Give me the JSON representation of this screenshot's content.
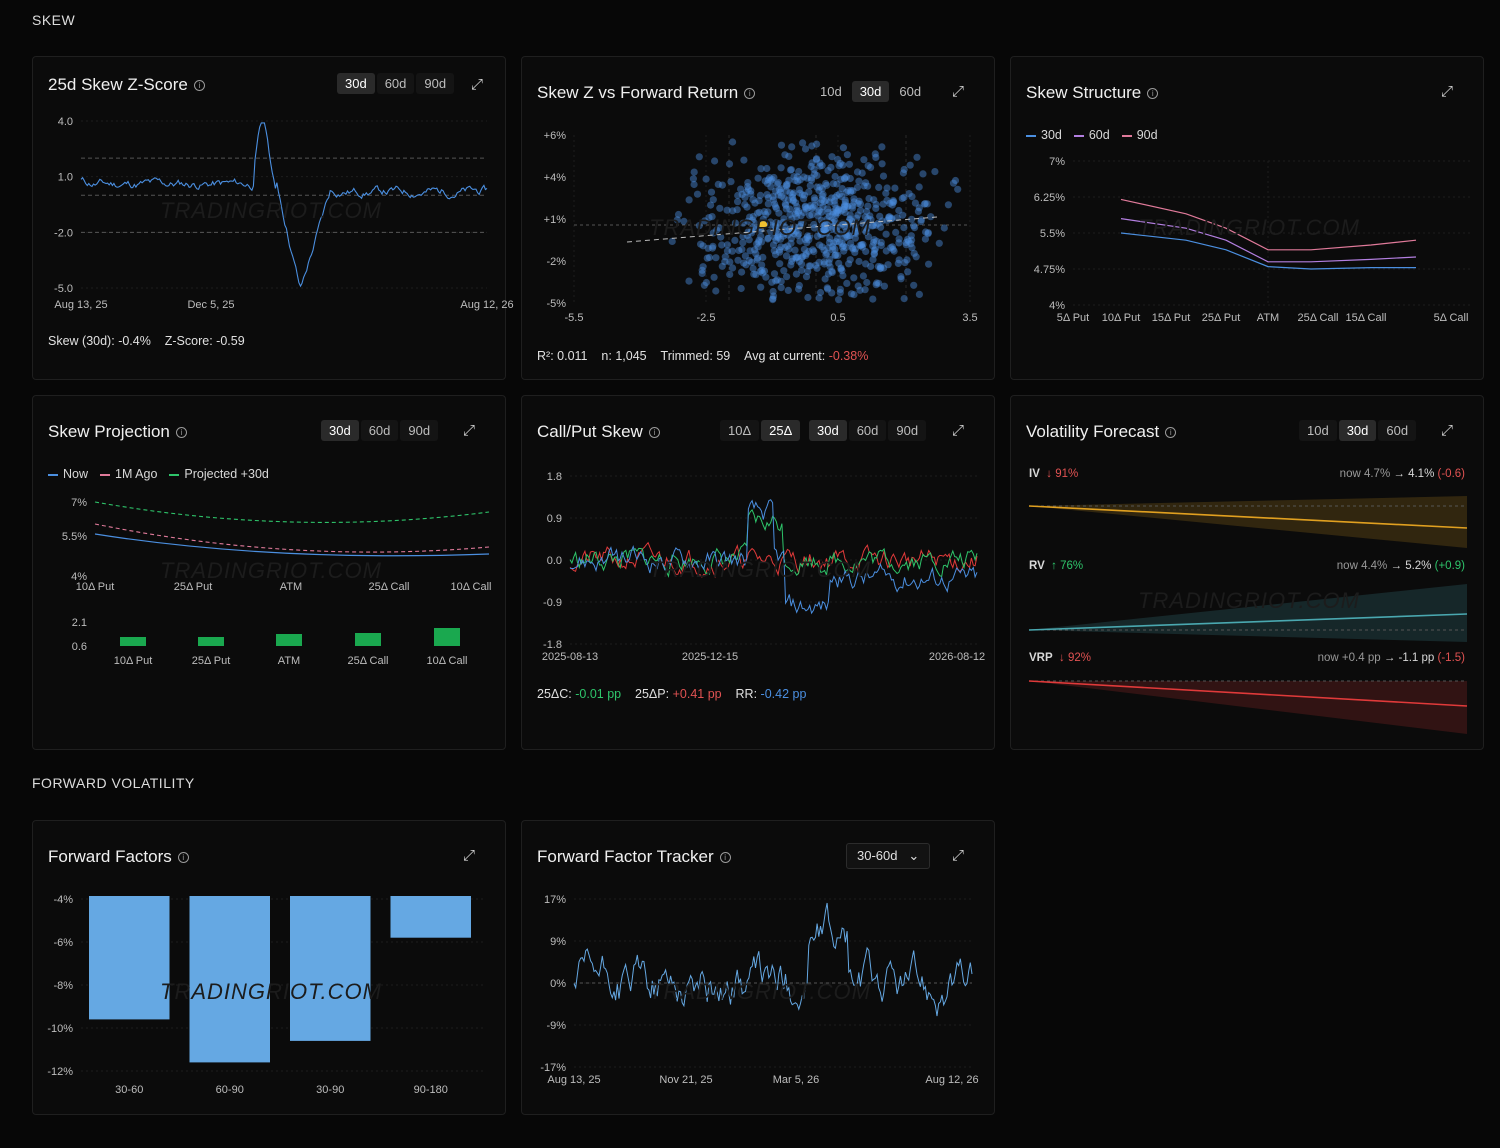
{
  "sections": {
    "skew": "SKEW",
    "forward": "FORWARD VOLATILITY"
  },
  "watermark": "TRADINGRIOT.COM",
  "p1": {
    "title": "25d Skew Z-Score",
    "tabs": [
      "30d",
      "60d",
      "90d"
    ],
    "active": "30d",
    "stats": {
      "skew_label": "Skew (30d):",
      "skew_val": "-0.4%",
      "z_label": "Z-Score:",
      "z_val": "-0.59"
    },
    "chart_data": {
      "type": "line",
      "yticks": [
        "4.0",
        "1.0",
        "-2.0",
        "-5.0"
      ],
      "ylim": [
        -5,
        4
      ],
      "xticks": [
        "Aug 13, 25",
        "Dec 5, 25",
        "Aug 12, 26"
      ],
      "reference_lines": [
        2,
        0,
        -2
      ],
      "color": "#4b8fe0"
    }
  },
  "p2": {
    "title": "Skew Z vs Forward Return",
    "tabs": [
      "10d",
      "30d",
      "60d"
    ],
    "active": "30d",
    "stats": {
      "r2_label": "R²:",
      "r2": "0.011",
      "n_label": "n:",
      "n": "1,045",
      "trim_label": "Trimmed:",
      "trim": "59",
      "avg_label": "Avg at current:",
      "avg": "-0.38%"
    },
    "chart_data": {
      "type": "scatter",
      "yticks": [
        "+6%",
        "+4%",
        "+1%",
        "-2%",
        "-5%"
      ],
      "xticks": [
        "-5.5",
        "-2.5",
        "0.5",
        "3.5"
      ],
      "xlim": [
        -5.5,
        3.5
      ],
      "ylim": [
        -5,
        6
      ],
      "current_point": {
        "x": -1.2,
        "y": -0.38
      },
      "color": "#4b8fe0"
    }
  },
  "p3": {
    "title": "Skew Structure",
    "legend": [
      {
        "name": "30d",
        "color": "#4b8fe0"
      },
      {
        "name": "60d",
        "color": "#b37fe0"
      },
      {
        "name": "90d",
        "color": "#e07a9a"
      }
    ],
    "chart_data": {
      "type": "line",
      "yticks": [
        "7%",
        "6.25%",
        "5.5%",
        "4.75%",
        "4%"
      ],
      "ylim": [
        4,
        7
      ],
      "categories": [
        "5Δ Put",
        "10Δ Put",
        "15Δ Put",
        "25Δ Put",
        "ATM",
        "25Δ Call",
        "15Δ Call",
        "5Δ Call"
      ],
      "series": [
        {
          "name": "30d",
          "values": [
            null,
            5.5,
            5.35,
            5.15,
            4.8,
            4.75,
            4.78,
            4.78
          ]
        },
        {
          "name": "60d",
          "values": [
            null,
            5.8,
            5.6,
            5.35,
            4.9,
            4.9,
            4.95,
            5.0
          ]
        },
        {
          "name": "90d",
          "values": [
            null,
            6.2,
            5.9,
            5.6,
            5.15,
            5.15,
            5.25,
            5.35
          ]
        }
      ]
    }
  },
  "p4": {
    "title": "Skew Projection",
    "tabs": [
      "30d",
      "60d",
      "90d"
    ],
    "active": "30d",
    "legend": [
      {
        "name": "Now",
        "color": "#4b8fe0"
      },
      {
        "name": "1M Ago",
        "color": "#e07a9a"
      },
      {
        "name": "Projected +30d",
        "color": "#2ec46a"
      }
    ],
    "chart_data": {
      "type": "line",
      "yticks": [
        "7%",
        "5.5%",
        "4%"
      ],
      "categories": [
        "10Δ Put",
        "25Δ Put",
        "ATM",
        "25Δ Call",
        "10Δ Call"
      ],
      "bar_yticks": [
        "2.1",
        "0.6"
      ],
      "bar_values": [
        0.9,
        0.9,
        1.2,
        1.3,
        1.8
      ]
    }
  },
  "p5": {
    "title": "Call/Put Skew",
    "tabs1": [
      "10Δ",
      "25Δ"
    ],
    "active1": "25Δ",
    "tabs2": [
      "30d",
      "60d",
      "90d"
    ],
    "active2": "30d",
    "stats": {
      "c_label": "25ΔC:",
      "c": "-0.01 pp",
      "p_label": "25ΔP:",
      "p": "+0.41 pp",
      "rr_label": "RR:",
      "rr": "-0.42 pp"
    },
    "chart_data": {
      "type": "line",
      "yticks": [
        "1.8",
        "0.9",
        "0.0",
        "-0.9",
        "-1.8"
      ],
      "ylim": [
        -1.8,
        1.8
      ],
      "xticks": [
        "2025-08-13",
        "2025-12-15",
        "2026-08-12"
      ]
    }
  },
  "p6": {
    "title": "Volatility Forecast",
    "tabs": [
      "10d",
      "30d",
      "60d"
    ],
    "active": "30d",
    "rows": [
      {
        "label": "IV",
        "pct": "↓ 91%",
        "now": "now 4.7%",
        "to": "→ 4.1%",
        "chg": "(-0.6)",
        "color": "#e0a020"
      },
      {
        "label": "RV",
        "pct": "↑ 76%",
        "now": "now 4.4%",
        "to": "→ 5.2%",
        "chg": "(+0.9)",
        "color": "#4aa8b0"
      },
      {
        "label": "VRP",
        "pct": "↓ 92%",
        "now": "now +0.4 pp",
        "to": "→ -1.1 pp",
        "chg": "(-1.5)",
        "color": "#e03a3a"
      }
    ]
  },
  "p7": {
    "title": "Forward Factors",
    "chart_data": {
      "type": "bar",
      "yticks": [
        "-4%",
        "-6%",
        "-8%",
        "-10%",
        "-12%"
      ],
      "ylim": [
        -12,
        -4
      ],
      "categories": [
        "30-60",
        "60-90",
        "30-90",
        "90-180"
      ],
      "values": [
        -9.6,
        -11.6,
        -10.6,
        -5.8
      ],
      "color": "#65a8e3"
    }
  },
  "p8": {
    "title": "Forward Factor Tracker",
    "select": "30-60d",
    "chart_data": {
      "type": "line",
      "yticks": [
        "17%",
        "9%",
        "0%",
        "-9%",
        "-17%"
      ],
      "ylim": [
        -17,
        17
      ],
      "xticks": [
        "Aug 13, 25",
        "Nov 21, 25",
        "Mar 5, 26",
        "Aug 12, 26"
      ],
      "color": "#65a8e3"
    }
  }
}
